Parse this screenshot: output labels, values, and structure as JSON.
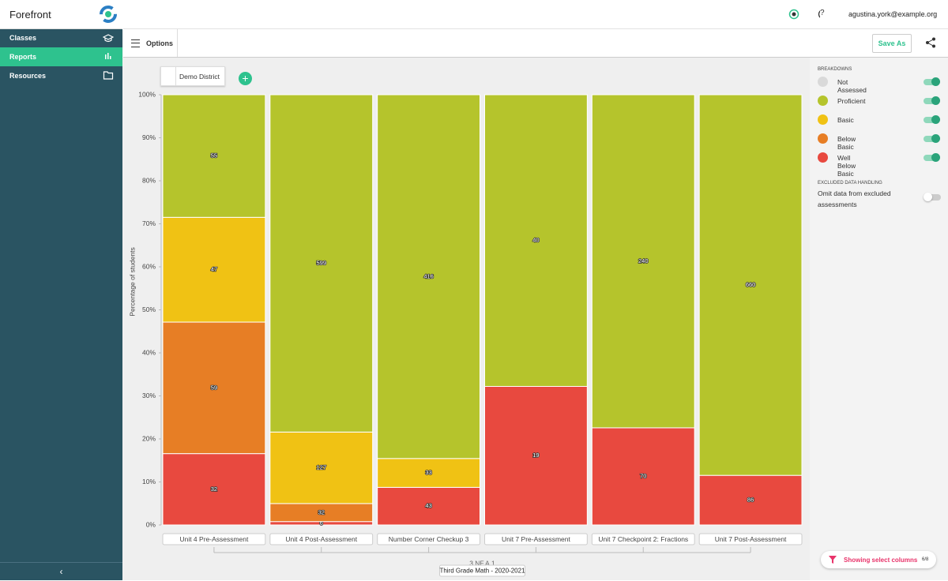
{
  "app": {
    "name": "Forefront",
    "user": "agustina.york@example.org",
    "nav": [
      "Classes",
      "Reports",
      "Resources"
    ],
    "active_nav": 1,
    "options": "Options",
    "save_as": "Save As",
    "district": "Demo District",
    "breakdowns_title": "BREAKDOWNS",
    "excluded_title": "EXCLUDED DATA HANDLING",
    "excluded_text": "Omit data from excluded assessments",
    "showing": "Showing select columns",
    "showing_count": "6/8"
  },
  "chart_data": {
    "type": "stacked_percent_bar",
    "ylabel": "Percentage of students",
    "categories": [
      "Unit 4 Pre-Assessment",
      "Unit 4 Post-Assessment",
      "Number Corner Checkup 3",
      "Unit 7 Pre-Assessment",
      "Unit 7 Checkpoint 2: Fractions",
      "Unit 7 Post-Assessment"
    ],
    "group_label": "3.NF.A.1",
    "group_sublabel": "Third Grade Math - 2020-2021",
    "series": [
      {
        "name": "Not Assessed",
        "color": "#d9d9d9",
        "values": [
          null,
          null,
          null,
          null,
          null,
          null
        ]
      },
      {
        "name": "Proficient",
        "color": "#b5c42c",
        "values": [
          55,
          599,
          416,
          40,
          240,
          660
        ]
      },
      {
        "name": "Basic",
        "color": "#f0c214",
        "values": [
          47,
          127,
          33,
          null,
          null,
          null
        ]
      },
      {
        "name": "Below Basic",
        "color": "#e77e25",
        "values": [
          59,
          32,
          null,
          null,
          null,
          null
        ]
      },
      {
        "name": "Well Below Basic",
        "color": "#e8493f",
        "values": [
          32,
          6,
          43,
          19,
          70,
          86
        ]
      }
    ],
    "ylim": [
      0,
      100
    ],
    "yticks": [
      {
        "value": 0,
        "label": "0%"
      },
      {
        "value": 10,
        "label": "10%"
      },
      {
        "value": 20,
        "label": "20%"
      },
      {
        "value": 30,
        "label": "30%"
      },
      {
        "value": 40,
        "label": "40%"
      },
      {
        "value": 50,
        "label": "50%"
      },
      {
        "value": 60,
        "label": "60%"
      },
      {
        "value": 70,
        "label": "70%"
      },
      {
        "value": 80,
        "label": "80%"
      },
      {
        "value": 90,
        "label": "90%"
      },
      {
        "value": 100,
        "label": "100%"
      }
    ],
    "grid": false
  }
}
